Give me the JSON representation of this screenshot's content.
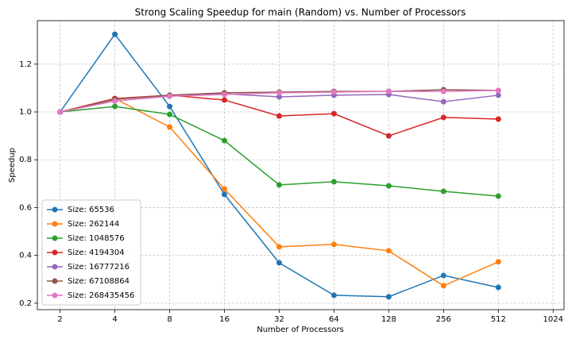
{
  "chart_data": {
    "type": "line",
    "title": "Strong Scaling Speedup for main (Random) vs. Number of Processors",
    "x_label": "Number of Processors",
    "y_label": "Speedup",
    "x": [
      2,
      4,
      8,
      16,
      32,
      64,
      128,
      256,
      512
    ],
    "x_scale": "log2",
    "xlim": [
      1.5,
      1176
    ],
    "xticks": [
      2,
      4,
      8,
      16,
      32,
      64,
      128,
      256,
      512,
      1024
    ],
    "ylim": [
      0.173,
      1.382
    ],
    "yticks": [
      0.2,
      0.4,
      0.6,
      0.8,
      {
        "value": 1,
        "label": "1.0"
      },
      1.2
    ],
    "grid": true,
    "legend": "lower left",
    "series": [
      {
        "name": "Size: 65536",
        "color": "#1f77b4",
        "values": [
          1.0,
          1.325,
          1.023,
          0.655,
          0.369,
          0.233,
          0.227,
          0.316,
          0.266
        ]
      },
      {
        "name": "Size: 262144",
        "color": "#ff7f0e",
        "values": [
          1.0,
          1.056,
          0.937,
          0.678,
          0.436,
          0.446,
          0.419,
          0.273,
          0.373
        ]
      },
      {
        "name": "Size: 1048576",
        "color": "#2ca02c",
        "values": [
          1.0,
          1.023,
          0.99,
          0.88,
          0.695,
          0.708,
          0.691,
          0.668,
          0.648
        ]
      },
      {
        "name": "Size: 4194304",
        "color": "#d62728",
        "values": [
          1.0,
          1.056,
          1.07,
          1.05,
          0.983,
          0.993,
          0.9,
          0.977,
          0.97
        ]
      },
      {
        "name": "Size: 16777216",
        "color": "#9467bd",
        "values": [
          1.0,
          1.046,
          1.066,
          1.076,
          1.063,
          1.07,
          1.073,
          1.043,
          1.07
        ]
      },
      {
        "name": "Size: 67108864",
        "color": "#8c564b",
        "values": [
          1.0,
          1.053,
          1.07,
          1.08,
          1.083,
          1.086,
          1.086,
          1.093,
          1.09
        ]
      },
      {
        "name": "Size: 268435456",
        "color": "#e377c2",
        "values": [
          1.0,
          1.046,
          1.066,
          1.073,
          1.08,
          1.083,
          1.086,
          1.086,
          1.09
        ]
      }
    ]
  }
}
